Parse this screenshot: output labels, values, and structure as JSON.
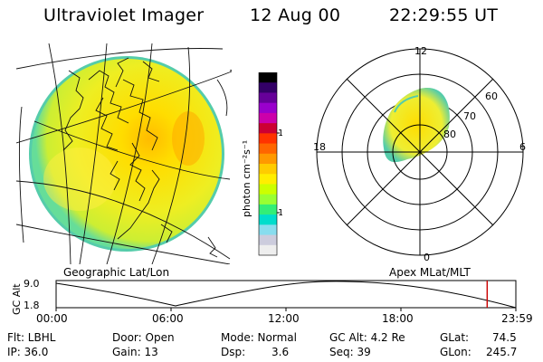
{
  "header": {
    "title": "Ultraviolet Imager",
    "date": "12 Aug 00",
    "time": "22:29:55 UT"
  },
  "colorbar": {
    "unit_label": "photon cm⁻²s⁻¹",
    "tick_100": "100",
    "tick_10": "10",
    "colors": [
      "#000000",
      "#330066",
      "#660099",
      "#9900cc",
      "#cc00aa",
      "#cc0033",
      "#ff3300",
      "#ff6600",
      "#ff9900",
      "#ffcc00",
      "#ffee00",
      "#ccff00",
      "#99ff33",
      "#33ee77",
      "#00ddcc",
      "#88ddee",
      "#ccccdd",
      "#eeeeee"
    ]
  },
  "polar_plot": {
    "mlt_labels": {
      "top": "12",
      "left": "18",
      "right": "6",
      "bottom": "0"
    },
    "lat_labels": {
      "l60": "60",
      "l70": "70",
      "l80": "80"
    }
  },
  "timeline": {
    "left_label": "Geographic Lat/Lon",
    "right_label": "Apex MLat/MLT",
    "axis_title": "GC Alt",
    "y_ticks": [
      "9.0",
      "1.8"
    ],
    "x_ticks": [
      "00:00",
      "06:00",
      "12:00",
      "18:00",
      "23:59"
    ],
    "current_marker_hour": 22.5
  },
  "footer": {
    "row1": {
      "flt": "Flt: LBHL",
      "door": "Door: Open",
      "mode": "Mode: Normal",
      "gcalt": "GC Alt: 4.2 Re",
      "glat_label": "GLat:",
      "glat_value": "74.5"
    },
    "row2": {
      "ip": "IP: 36.0",
      "gain": "Gain: 13",
      "dsp_label": "Dsp:",
      "dsp_value": "3.6",
      "seq": "Seq: 39",
      "glon_label": "GLon:",
      "glon_value": "245.7"
    }
  }
}
